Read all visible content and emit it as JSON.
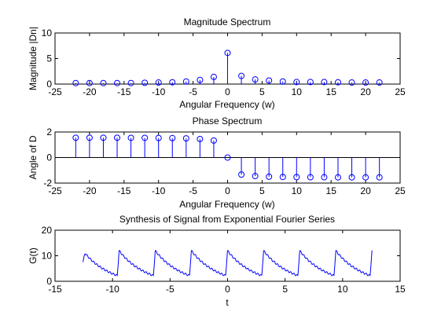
{
  "colors": {
    "data": "#0000ff",
    "axes": "#000000",
    "background": "#ffffff"
  },
  "chart_data": [
    {
      "type": "stem",
      "title": "Magnitude Spectrum",
      "xlabel": "Angular Frequency (w)",
      "ylabel": "Magnitude |Dn|",
      "xlim": [
        -25,
        25
      ],
      "ylim": [
        0,
        10
      ],
      "xticks": [
        "-25",
        "-20",
        "-15",
        "-10",
        "-5",
        "0",
        "5",
        "10",
        "15",
        "20",
        "25"
      ],
      "yticks": [
        "0",
        "5",
        "10"
      ],
      "grid": false,
      "x": [
        -22,
        -20,
        -18,
        -16,
        -14,
        -12,
        -10,
        -8,
        -6,
        -4,
        -2,
        0,
        2,
        4,
        6,
        8,
        10,
        12,
        14,
        16,
        18,
        20,
        22
      ],
      "y": [
        0.2,
        0.2,
        0.2,
        0.2,
        0.2,
        0.25,
        0.3,
        0.35,
        0.5,
        0.8,
        1.4,
        6.1,
        1.6,
        0.9,
        0.7,
        0.5,
        0.4,
        0.4,
        0.4,
        0.35,
        0.3,
        0.3,
        0.3
      ]
    },
    {
      "type": "stem",
      "title": "Phase Spectrum",
      "xlabel": "Angular Frequency (w)",
      "ylabel": "Angle of D",
      "xlim": [
        -25,
        25
      ],
      "ylim": [
        -2,
        2
      ],
      "xticks": [
        "-25",
        "-20",
        "-15",
        "-10",
        "-5",
        "0",
        "5",
        "10",
        "15",
        "20",
        "25"
      ],
      "yticks": [
        "-2",
        "0",
        "2"
      ],
      "grid": false,
      "x": [
        -22,
        -20,
        -18,
        -16,
        -14,
        -12,
        -10,
        -8,
        -6,
        -4,
        -2,
        0,
        2,
        4,
        6,
        8,
        10,
        12,
        14,
        16,
        18,
        20,
        22
      ],
      "y": [
        1.55,
        1.55,
        1.55,
        1.55,
        1.54,
        1.54,
        1.53,
        1.52,
        1.5,
        1.45,
        1.33,
        0,
        -1.33,
        -1.45,
        -1.5,
        -1.52,
        -1.53,
        -1.54,
        -1.54,
        -1.55,
        -1.55,
        -1.55,
        -1.55
      ]
    },
    {
      "type": "line",
      "title": "Synthesis of Signal from Exponential Fourier Series",
      "xlabel": "t",
      "ylabel": "G(t)",
      "xlim": [
        -15,
        15
      ],
      "ylim": [
        0,
        20
      ],
      "xticks": [
        "-15",
        "-10",
        "-5",
        "0",
        "5",
        "10",
        "15"
      ],
      "yticks": [
        "0",
        "10",
        "20"
      ],
      "grid": false,
      "t_range": [
        -12.57,
        12.57
      ],
      "period": 3.14,
      "peak": 12,
      "trough": 2.2,
      "start_value": 7.5
    }
  ]
}
